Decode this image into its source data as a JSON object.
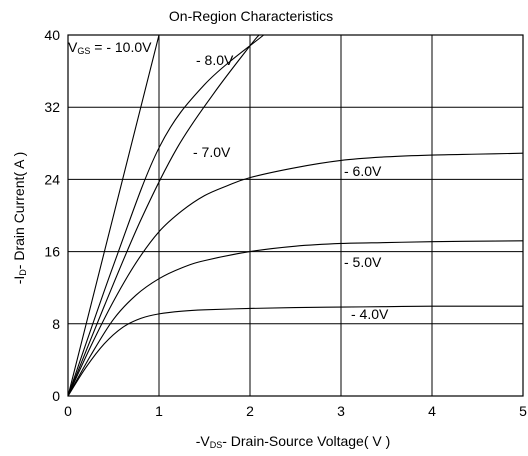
{
  "chart_data": {
    "type": "line",
    "title": "On-Region Characteristics",
    "xlabel": {
      "prefix": "-V",
      "sub": "DS",
      "rest": "- Drain-Source Voltage( V )"
    },
    "ylabel": {
      "prefix": "-I",
      "sub": "D",
      "rest": "- Drain Current( A )"
    },
    "xlim": [
      0,
      5
    ],
    "ylim": [
      0,
      40
    ],
    "x_ticks": [
      "0",
      "1",
      "2",
      "3",
      "4",
      "5"
    ],
    "y_ticks": [
      "0",
      "8",
      "16",
      "24",
      "32",
      "40"
    ],
    "grid": true,
    "series": [
      {
        "name": "V_GS = - 10.0V",
        "label_parts": {
          "v": "V",
          "sub": "GS",
          "rest": " = - 10.0V"
        },
        "x": [
          0,
          0.5,
          1.0
        ],
        "y": [
          0,
          20,
          40
        ]
      },
      {
        "name": "- 8.0V",
        "label": "- 8.0V",
        "x": [
          0,
          0.5,
          1.0,
          1.5,
          2.15
        ],
        "y": [
          0,
          14.5,
          27.5,
          34.5,
          40
        ]
      },
      {
        "name": "- 7.0V",
        "label": "- 7.0V",
        "x": [
          0,
          0.4,
          0.8,
          1.2,
          1.6,
          2.0,
          2.1
        ],
        "y": [
          0,
          10,
          19.5,
          27.5,
          33.5,
          38.8,
          40
        ]
      },
      {
        "name": "- 6.0V",
        "label": "- 6.0V",
        "x": [
          0,
          0.25,
          0.5,
          0.75,
          1.0,
          1.25,
          1.5,
          1.75,
          2.0,
          2.5,
          3.0,
          3.5,
          4.0,
          4.5,
          5.0
        ],
        "y": [
          0,
          5.5,
          10.5,
          14.8,
          18.2,
          20.5,
          22.2,
          23.3,
          24.2,
          25.3,
          26.1,
          26.5,
          26.7,
          26.8,
          26.9
        ]
      },
      {
        "name": "- 5.0V",
        "label": "- 5.0V",
        "x": [
          0,
          0.25,
          0.5,
          0.75,
          1.0,
          1.25,
          1.5,
          2.0,
          2.5,
          3.0,
          3.5,
          4.0,
          4.5,
          5.0
        ],
        "y": [
          0,
          4.5,
          8.5,
          11.2,
          13.0,
          14.2,
          15.0,
          16.0,
          16.6,
          16.9,
          17.0,
          17.1,
          17.15,
          17.2
        ]
      },
      {
        "name": "- 4.0V",
        "label": "- 4.0V",
        "x": [
          0,
          0.2,
          0.4,
          0.6,
          0.8,
          1.0,
          1.25,
          1.5,
          2.0,
          2.5,
          3.0,
          3.5,
          4.0,
          4.5,
          5.0
        ],
        "y": [
          0,
          3.2,
          5.8,
          7.6,
          8.6,
          9.1,
          9.4,
          9.55,
          9.7,
          9.8,
          9.85,
          9.9,
          9.95,
          9.95,
          9.95
        ]
      }
    ]
  }
}
